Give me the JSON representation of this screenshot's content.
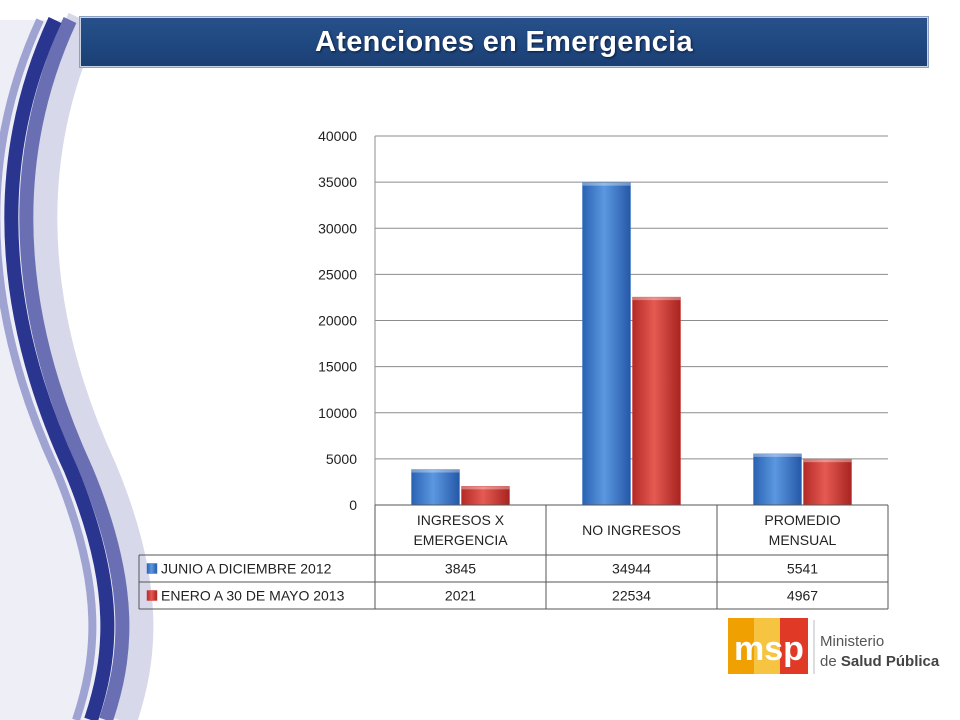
{
  "title": "Atenciones en Emergencia",
  "chart_data": {
    "type": "bar",
    "categories": [
      [
        "INGRESOS X",
        "EMERGENCIA"
      ],
      [
        "NO INGRESOS"
      ],
      [
        "PROMEDIO",
        "MENSUAL"
      ]
    ],
    "series": [
      {
        "name": "JUNIO A DICIEMBRE 2012",
        "values": [
          3845,
          34944,
          5541
        ],
        "labels": [
          "3845",
          "34944",
          "5541"
        ],
        "color": "#3a78cc"
      },
      {
        "name": "ENERO A 30 DE MAYO 2013",
        "values": [
          2021,
          22534,
          4967
        ],
        "labels": [
          "2021",
          "22534",
          "4967"
        ],
        "color": "#d23a36"
      }
    ],
    "ylim": [
      0,
      40000
    ],
    "yticks": [
      "0",
      "5000",
      "10000",
      "15000",
      "20000",
      "25000",
      "30000",
      "35000",
      "40000"
    ],
    "grid": true,
    "legend": "data-table"
  },
  "logo": {
    "mark": "msp",
    "line1": "Ministerio",
    "line2_prefix": "de ",
    "line2_bold": "Salud Pública",
    "colors": {
      "orange": "#f0a000",
      "red": "#e03a26",
      "navy": "#1f3b7a"
    }
  }
}
